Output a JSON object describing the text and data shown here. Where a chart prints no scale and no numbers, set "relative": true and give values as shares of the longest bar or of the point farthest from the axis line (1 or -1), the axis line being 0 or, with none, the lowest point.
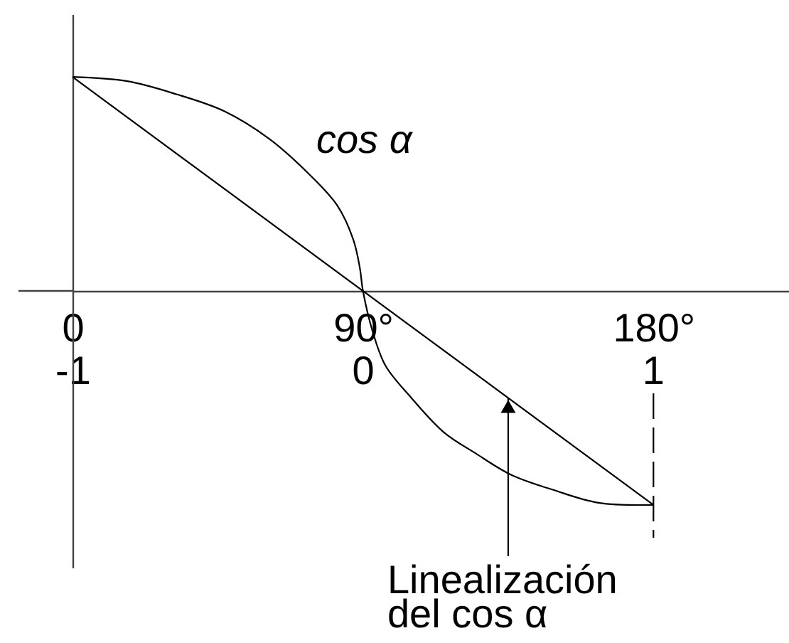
{
  "chart_data": {
    "type": "line",
    "relative": true,
    "grid": false,
    "xlim": [
      0,
      222
    ],
    "xticks": [
      0,
      {
        "value": 90,
        "label": "90°"
      },
      {
        "value": 180,
        "label": "180°"
      }
    ],
    "x2lim": [
      -1,
      1.47
    ],
    "x2ticks": [
      -1,
      0,
      1
    ],
    "series": [
      {
        "name": "cos α",
        "color": "#000000",
        "x": [
          0,
          17,
          32,
          47,
          61,
          73,
          82,
          87,
          89,
          90,
          93,
          97,
          105,
          115,
          125,
          136,
          149,
          163,
          180
        ],
        "values": [
          1,
          0.98,
          0.92,
          0.84,
          0.71,
          0.55,
          0.4,
          0.24,
          0.11,
          0,
          -0.19,
          -0.35,
          -0.5,
          -0.66,
          -0.76,
          -0.86,
          -0.93,
          -0.99,
          -1
        ]
      },
      {
        "color": "#000000",
        "x": [
          0,
          180
        ],
        "values": [
          1,
          -1
        ]
      }
    ],
    "ref_lines": [
      {
        "axis": "x",
        "value": 180,
        "line_style": "dashed",
        "color": "#000000"
      }
    ],
    "annotations": [
      {
        "text": "Linealización del cos α",
        "x": 135,
        "y": -0.5
      }
    ]
  }
}
